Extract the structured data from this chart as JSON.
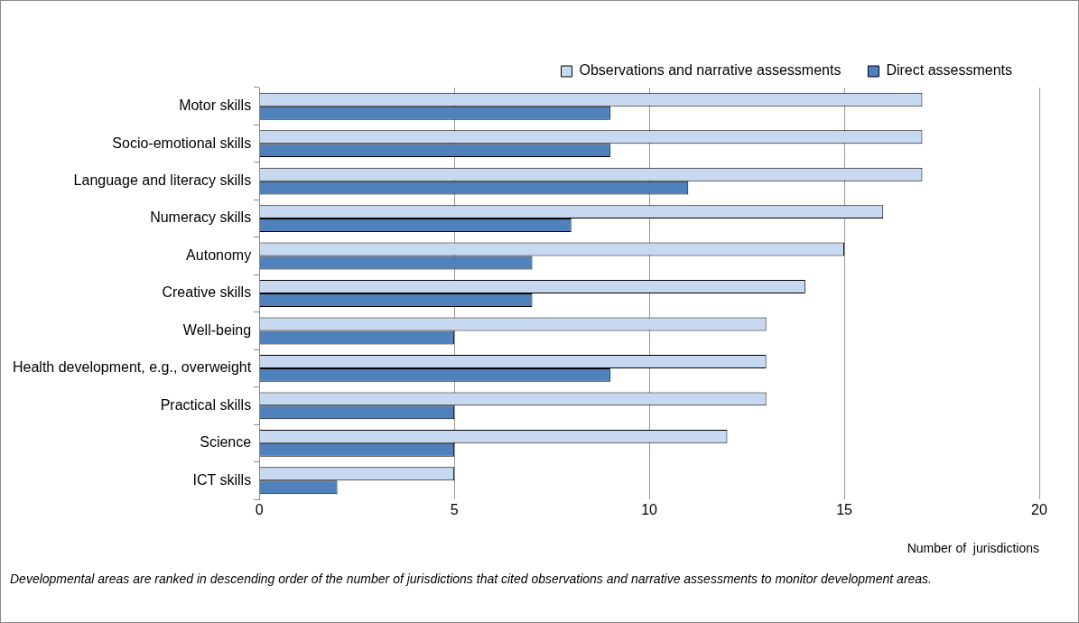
{
  "chart_data": {
    "type": "bar",
    "orientation": "horizontal",
    "xlabel": "Number of  jurisdictions",
    "categories": [
      "Motor skills",
      "Socio-emotional skills",
      "Language and literacy skills",
      "Numeracy skills",
      "Autonomy",
      "Creative skills",
      "Well-being",
      "Health development, e.g., overweight",
      "Practical skills",
      "Science",
      "ICT skills"
    ],
    "series": [
      {
        "name": "Observations and narrative assessments",
        "color": "#c6d9f1",
        "values": [
          17,
          17,
          17,
          16,
          15,
          14,
          13,
          13,
          13,
          12,
          5
        ]
      },
      {
        "name": "Direct assessments",
        "color": "#4f81bd",
        "values": [
          9,
          9,
          11,
          8,
          7,
          7,
          5,
          9,
          5,
          5,
          2
        ]
      }
    ],
    "xlim": [
      0,
      20
    ],
    "xticks": [
      0,
      5,
      10,
      15,
      20
    ],
    "grid": "x",
    "legend": "top right",
    "annotations": [
      "Developmental areas are ranked in descending order of the number of jurisdictions that cited  observations and narrative assessments  to monitor development areas."
    ]
  }
}
